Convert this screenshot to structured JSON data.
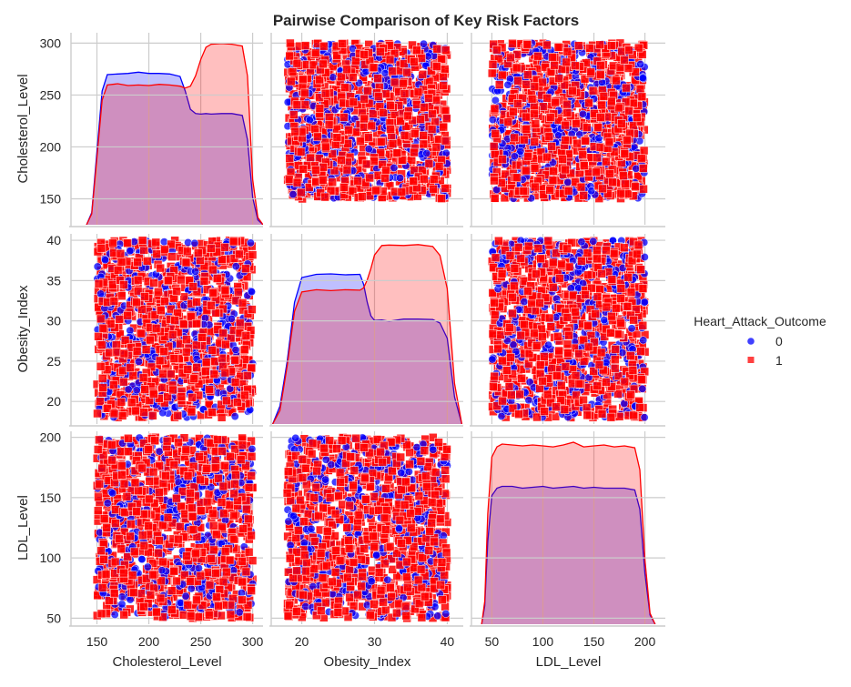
{
  "chart_data": {
    "type": "pairplot",
    "title": "Pairwise Comparison of Key Risk Factors",
    "variables": [
      "Cholesterol_Level",
      "Obesity_Index",
      "LDL_Level"
    ],
    "axes": {
      "Cholesterol_Level": {
        "range": [
          125,
          310
        ],
        "ticks": [
          150,
          200,
          250,
          300
        ]
      },
      "Obesity_Index": {
        "range": [
          15.8,
          42.2
        ],
        "ticks": [
          20,
          30,
          40
        ],
        "y_ticks": [
          20,
          25,
          30,
          35,
          40
        ],
        "y_range": [
          17.2,
          40.8
        ]
      },
      "LDL_Level": {
        "range": [
          30,
          220
        ],
        "ticks": [
          50,
          100,
          150,
          200
        ],
        "y_range": [
          45,
          205
        ]
      }
    },
    "grid": true,
    "legend": {
      "title": "Heart_Attack_Outcome",
      "placement": "center-right",
      "entries": [
        {
          "label": "0",
          "marker": "circle",
          "color": "#0000ff"
        },
        {
          "label": "1",
          "marker": "square",
          "color": "#ff0000"
        }
      ]
    },
    "scatter_point_ranges": {
      "Cholesterol_Level": [
        150,
        300
      ],
      "Obesity_Index": [
        18,
        40
      ],
      "LDL_Level": [
        50,
        200
      ]
    },
    "kde": {
      "Cholesterol_Level": {
        "x": [
          140,
          145,
          150,
          155,
          160,
          170,
          180,
          190,
          200,
          210,
          220,
          230,
          235,
          240,
          245,
          250,
          255,
          260,
          270,
          280,
          290,
          295,
          300,
          305,
          310
        ],
        "series": [
          {
            "name": "0",
            "values": [
              0,
              20,
              120,
              220,
              247,
              248,
              249,
              251,
              249,
              249,
              248,
              244,
              220,
              190,
              183,
              182,
              183,
              182,
              183,
              183,
              180,
              140,
              45,
              8,
              0
            ]
          },
          {
            "name": "1",
            "values": [
              0,
              18,
              110,
              205,
              230,
              232,
              229,
              230,
              229,
              231,
              230,
              228,
              225,
              228,
              245,
              272,
              292,
              297,
              298,
              297,
              294,
              245,
              75,
              12,
              0
            ]
          }
        ]
      },
      "Obesity_Index": {
        "x": [
          16,
          17,
          18,
          19,
          20,
          22,
          24,
          26,
          28,
          28.5,
          29,
          29.5,
          30,
          31,
          32,
          34,
          36,
          38,
          39,
          40,
          41,
          42
        ],
        "series": [
          {
            "name": "0",
            "values": [
              0,
              4,
              14,
              27,
              32.5,
              33.2,
              33.3,
              33.1,
              33.2,
              31,
              27,
              24,
              23,
              23.1,
              22.8,
              23.3,
              23.3,
              23.2,
              22.4,
              19,
              6,
              0
            ]
          },
          {
            "name": "1",
            "values": [
              0,
              3,
              13,
              25,
              29.3,
              29.8,
              29.6,
              29.8,
              29.7,
              30.2,
              32,
              34.5,
              37.5,
              39.6,
              39.7,
              39.6,
              39.8,
              39.4,
              37.4,
              30,
              9,
              0
            ]
          }
        ]
      },
      "LDL_Level": {
        "x": [
          40,
          43,
          46,
          50,
          55,
          60,
          70,
          80,
          90,
          100,
          110,
          120,
          130,
          140,
          150,
          160,
          170,
          180,
          190,
          195,
          200,
          205,
          210
        ],
        "series": [
          {
            "name": "0",
            "values": [
              0,
              20,
              90,
              140,
              148,
              150,
              150,
              148,
              149,
              150,
              148,
              149,
              150,
              148,
              149,
              148,
              148,
              148,
              146,
              125,
              55,
              10,
              0
            ]
          },
          {
            "name": "1",
            "values": [
              0,
              25,
              120,
              182,
              193,
              196,
              195,
              194,
              195,
              194,
              193,
              195,
              198,
              193,
              194,
              195,
              193,
              194,
              192,
              168,
              70,
              12,
              0
            ]
          }
        ]
      }
    }
  }
}
